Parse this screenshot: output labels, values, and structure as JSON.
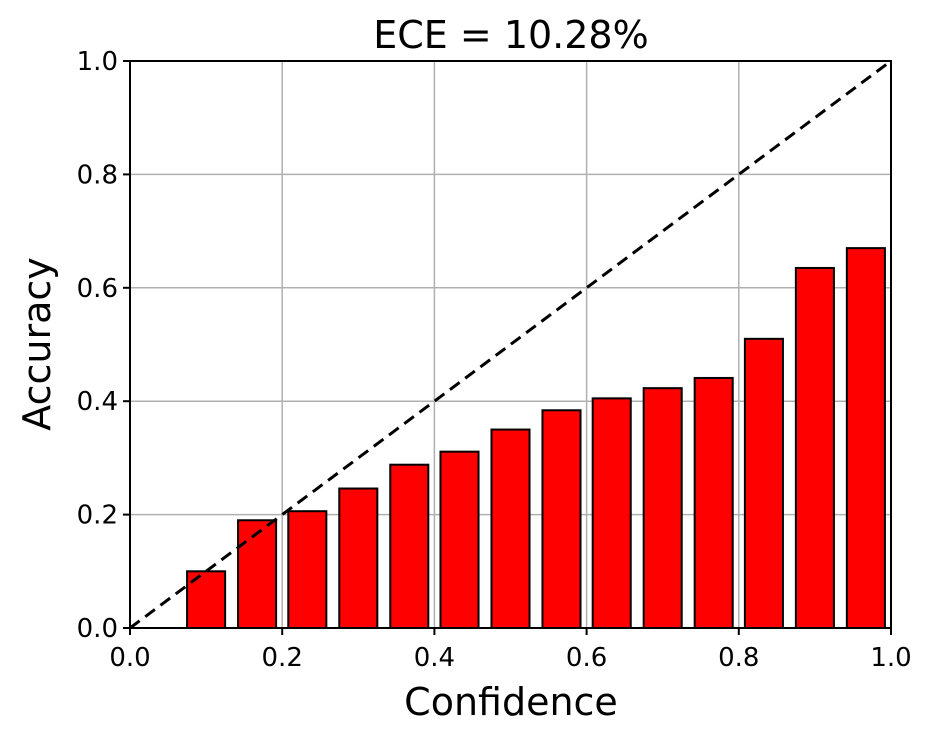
{
  "chart_data": {
    "type": "bar",
    "title": "ECE = 10.28%",
    "xlabel": "Confidence",
    "ylabel": "Accuracy",
    "xlim": [
      0.0,
      1.0
    ],
    "ylim": [
      0.0,
      1.0
    ],
    "xticks": [
      "0.0",
      "0.2",
      "0.4",
      "0.6",
      "0.8",
      "1.0"
    ],
    "yticks": [
      "0.0",
      "0.2",
      "0.4",
      "0.6",
      "0.8",
      "1.0"
    ],
    "grid": true,
    "bar_width": 0.05,
    "x": [
      0.1,
      0.167,
      0.233,
      0.3,
      0.367,
      0.433,
      0.5,
      0.567,
      0.633,
      0.7,
      0.767,
      0.833,
      0.9,
      0.967
    ],
    "values": [
      0.1,
      0.19,
      0.206,
      0.246,
      0.288,
      0.311,
      0.35,
      0.384,
      0.405,
      0.423,
      0.441,
      0.51,
      0.635,
      0.67
    ],
    "reference_line": {
      "from": [
        0.0,
        0.0
      ],
      "to": [
        1.0,
        1.0
      ],
      "style": "dashed"
    },
    "colors": {
      "bar": "#ff0000",
      "edge": "#000000",
      "grid": "#b0b0b0"
    }
  }
}
